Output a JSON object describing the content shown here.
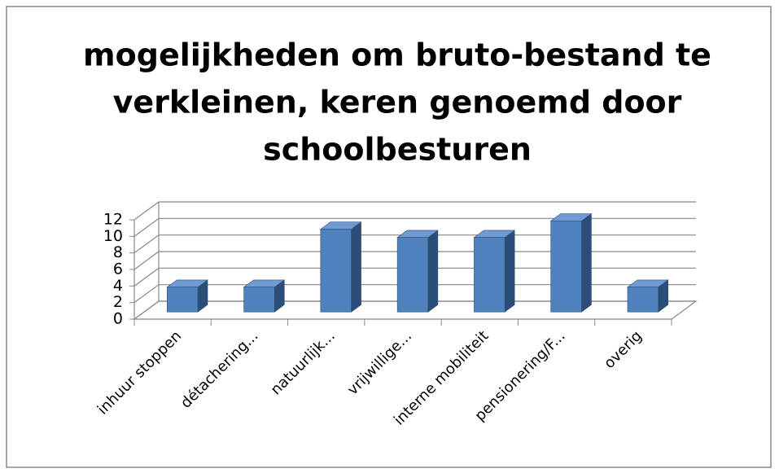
{
  "chart_data": {
    "type": "bar3d",
    "title": [
      "mogelijkheden om bruto-bestand te",
      "verkleinen, keren genoemd door",
      "schoolbesturen"
    ],
    "categories": [
      "inhuur stoppen",
      "détachering...",
      "natuurlijk...",
      "vrijwillige...",
      "interne mobiliteit",
      "pensionering/F...",
      "overig"
    ],
    "values": [
      3,
      3,
      10,
      9,
      9,
      11,
      3
    ],
    "color": "#4f81bd",
    "ylim": [
      0,
      12
    ],
    "yticks": [
      0,
      2,
      4,
      6,
      8,
      10,
      12
    ],
    "grid": true
  }
}
